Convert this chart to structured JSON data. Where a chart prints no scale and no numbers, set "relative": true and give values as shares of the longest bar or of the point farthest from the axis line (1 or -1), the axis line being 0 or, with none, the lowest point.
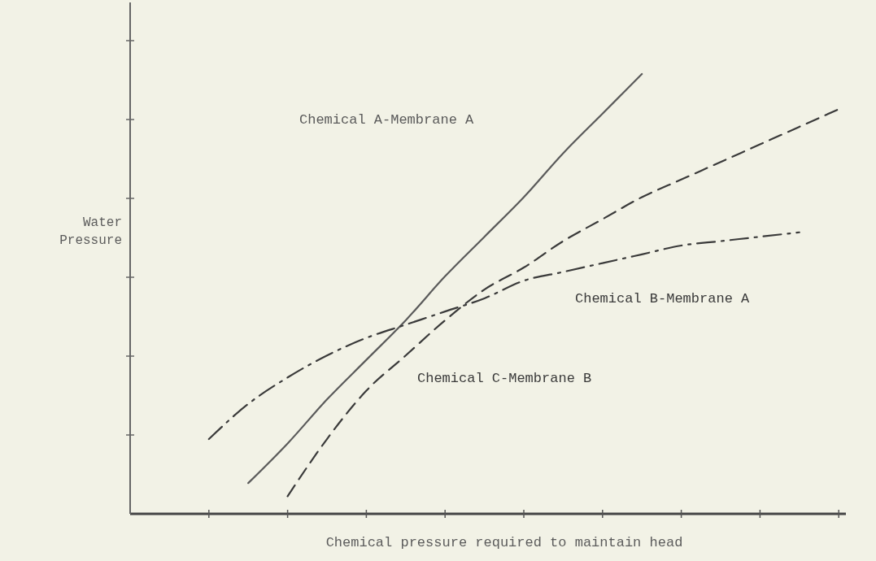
{
  "chart_data": {
    "type": "line",
    "relative": true,
    "xlabel": "Chemical pressure required to maintain head",
    "ylabel": "Water Pressure",
    "categories": [
      null,
      null,
      null,
      null,
      null,
      null,
      null,
      null,
      null,
      null,
      null,
      null,
      null,
      null,
      null,
      null,
      null,
      null,
      null
    ],
    "legend": false,
    "marker": "none",
    "series": [
      {
        "name": "Chemical A-Membrane A",
        "color": "#5a5a5a",
        "line_style": "solid",
        "values": [
          null,
          null,
          null,
          0.07,
          0.16,
          0.26,
          0.35,
          0.44,
          0.54,
          0.63,
          0.72,
          0.82,
          0.91,
          1,
          null,
          null,
          null,
          null,
          null
        ]
      },
      {
        "name": "Chemical B-Membrane A",
        "color": "#3a3a3a",
        "line_style": "dashdot",
        "values": [
          null,
          null,
          0.17,
          0.25,
          0.31,
          0.36,
          0.4,
          0.43,
          0.46,
          0.49,
          0.53,
          0.55,
          0.57,
          0.59,
          0.61,
          0.62,
          0.63,
          0.64,
          null
        ]
      },
      {
        "name": "Chemical C-Membrane B",
        "color": "#3a3a3a",
        "line_style": "dashed",
        "values": [
          null,
          null,
          null,
          null,
          0.04,
          0.17,
          0.28,
          0.36,
          0.44,
          0.51,
          0.56,
          0.62,
          0.67,
          0.72,
          0.76,
          0.8,
          0.84,
          0.88,
          0.92
        ]
      }
    ]
  }
}
